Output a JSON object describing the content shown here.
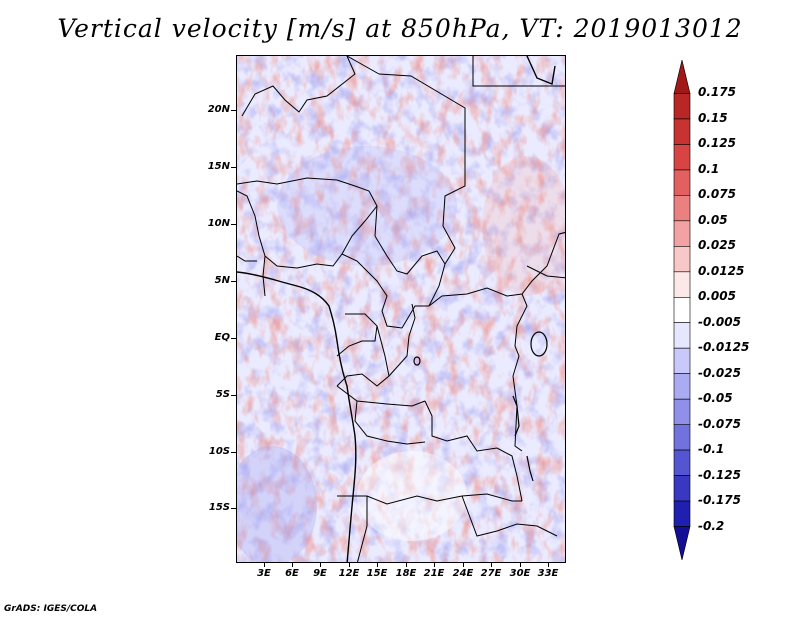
{
  "title": "Vertical velocity [m/s] at 850hPa, VT: 2019013012",
  "credit": "GrADS: IGES/COLA",
  "map": {
    "lat_labels": [
      "20N",
      "15N",
      "10N",
      "5N",
      "EQ",
      "5S",
      "10S",
      "15S"
    ],
    "lon_labels": [
      "3E",
      "6E",
      "9E",
      "12E",
      "15E",
      "18E",
      "21E",
      "24E",
      "27E",
      "30E",
      "33E"
    ],
    "lat_range": [
      -19.5,
      24.5
    ],
    "lon_range": [
      0,
      34.5
    ],
    "field_colors": {
      "strong_up": "#d73b35",
      "up": "#f4a39b",
      "weak_up": "#fde0dc",
      "neutral": "#ffffff",
      "weak_down": "#dcdcff",
      "down": "#a6a6f2",
      "strong_down": "#5f5fdc"
    }
  },
  "colorbar": {
    "labels": [
      "0.175",
      "0.15",
      "0.125",
      "0.1",
      "0.075",
      "0.05",
      "0.025",
      "0.0125",
      "0.005",
      "-0.005",
      "-0.0125",
      "-0.025",
      "-0.05",
      "-0.075",
      "-0.1",
      "-0.125",
      "-0.175",
      "-0.2"
    ],
    "colors": [
      "#a01818",
      "#b82626",
      "#c83232",
      "#d84444",
      "#e26060",
      "#ea8080",
      "#f2a2a2",
      "#f8c8c8",
      "#fde8e8",
      "#ffffff",
      "#e6e6ff",
      "#c8c8fa",
      "#ababf2",
      "#9090ea",
      "#7272de",
      "#5555d2",
      "#3838c2",
      "#2020b0",
      "#140d96"
    ]
  }
}
